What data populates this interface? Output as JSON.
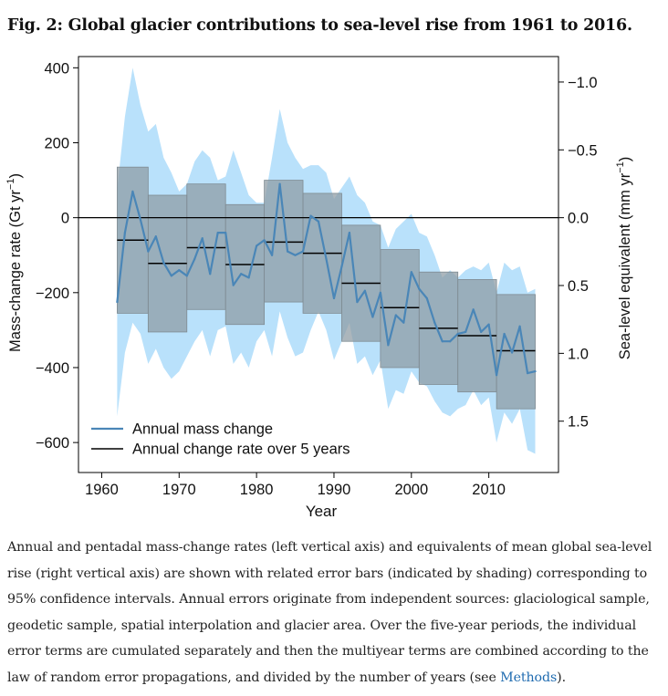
{
  "figure": {
    "title": "Fig. 2: Global glacier contributions to sea-level rise from 1961 to 2016."
  },
  "chart_data": {
    "type": "line",
    "xlabel": "Year",
    "ylabel": "Mass-change rate (Gt yr",
    "ylabel_sup": "−1",
    "ylabel_tail": ")",
    "y2label": "Sea-level equivalent (mm yr",
    "y2label_sup": "−1",
    "y2label_tail": ")",
    "xlim": [
      1957,
      2019
    ],
    "ylim": [
      -680,
      430
    ],
    "xticks": [
      1960,
      1970,
      1980,
      1990,
      2000,
      2010
    ],
    "yticks": [
      400,
      200,
      0,
      -200,
      -400,
      -600
    ],
    "y2ticks": [
      {
        "label": "−1.0",
        "gt": 362
      },
      {
        "label": "−0.5",
        "gt": 181
      },
      {
        "label": "0.0",
        "gt": 0
      },
      {
        "label": "0.5",
        "gt": -181
      },
      {
        "label": "1.0",
        "gt": -362
      },
      {
        "label": "1.5",
        "gt": -543
      }
    ],
    "grid": false,
    "legend_position": "bottom-left",
    "colors": {
      "annual_line": "#4a86b7",
      "annual_band": "#b9e1fb",
      "pentad_box": "#8c9aa2",
      "pentad_line": "#000000"
    },
    "series": [
      {
        "name": "Annual mass change",
        "x": [
          1962,
          1963,
          1964,
          1965,
          1966,
          1967,
          1968,
          1969,
          1970,
          1971,
          1972,
          1973,
          1974,
          1975,
          1976,
          1977,
          1978,
          1979,
          1980,
          1981,
          1982,
          1983,
          1984,
          1985,
          1986,
          1987,
          1988,
          1989,
          1990,
          1991,
          1992,
          1993,
          1994,
          1995,
          1996,
          1997,
          1998,
          1999,
          2000,
          2001,
          2002,
          2003,
          2004,
          2005,
          2006,
          2007,
          2008,
          2009,
          2010,
          2011,
          2012,
          2013,
          2014,
          2015,
          2016
        ],
        "values": [
          -225,
          -40,
          70,
          -5,
          -90,
          -50,
          -120,
          -155,
          -140,
          -155,
          -110,
          -55,
          -150,
          -40,
          -40,
          -180,
          -150,
          -160,
          -75,
          -60,
          -100,
          90,
          -90,
          -100,
          -90,
          5,
          -10,
          -110,
          -215,
          -130,
          -40,
          -225,
          -195,
          -265,
          -200,
          -340,
          -260,
          -280,
          -145,
          -190,
          -215,
          -280,
          -330,
          -330,
          -310,
          -305,
          -245,
          -305,
          -285,
          -420,
          -310,
          -360,
          -290,
          -415,
          -410
        ]
      },
      {
        "name": "Annual change rate over 5 years",
        "pentads": [
          {
            "x0": 1962,
            "x1": 1966,
            "value": -60,
            "lower": -255,
            "upper": 135
          },
          {
            "x0": 1966,
            "x1": 1971,
            "value": -122,
            "lower": -305,
            "upper": 60
          },
          {
            "x0": 1971,
            "x1": 1976,
            "value": -80,
            "lower": -245,
            "upper": 90
          },
          {
            "x0": 1976,
            "x1": 1981,
            "value": -125,
            "lower": -285,
            "upper": 35
          },
          {
            "x0": 1981,
            "x1": 1986,
            "value": -65,
            "lower": -225,
            "upper": 100
          },
          {
            "x0": 1986,
            "x1": 1991,
            "value": -95,
            "lower": -255,
            "upper": 65
          },
          {
            "x0": 1991,
            "x1": 1996,
            "value": -175,
            "lower": -330,
            "upper": -20
          },
          {
            "x0": 1996,
            "x1": 2001,
            "value": -240,
            "lower": -400,
            "upper": -85
          },
          {
            "x0": 2001,
            "x1": 2006,
            "value": -295,
            "lower": -445,
            "upper": -145
          },
          {
            "x0": 2006,
            "x1": 2011,
            "value": -315,
            "lower": -465,
            "upper": -165
          },
          {
            "x0": 2011,
            "x1": 2016,
            "value": -355,
            "lower": -510,
            "upper": -205
          }
        ]
      }
    ],
    "annual_error_band": {
      "x": [
        1962,
        1963,
        1964,
        1965,
        1966,
        1967,
        1968,
        1969,
        1970,
        1971,
        1972,
        1973,
        1974,
        1975,
        1976,
        1977,
        1978,
        1979,
        1980,
        1981,
        1982,
        1983,
        1984,
        1985,
        1986,
        1987,
        1988,
        1989,
        1990,
        1991,
        1992,
        1993,
        1994,
        1995,
        1996,
        1997,
        1998,
        1999,
        2000,
        2001,
        2002,
        2003,
        2004,
        2005,
        2006,
        2007,
        2008,
        2009,
        2010,
        2011,
        2012,
        2013,
        2014,
        2015,
        2016
      ],
      "upper": [
        75,
        270,
        400,
        300,
        230,
        250,
        160,
        120,
        70,
        90,
        150,
        180,
        160,
        100,
        110,
        180,
        120,
        60,
        40,
        40,
        160,
        290,
        200,
        160,
        130,
        140,
        140,
        120,
        50,
        80,
        110,
        60,
        40,
        -10,
        -20,
        -80,
        -30,
        -10,
        10,
        -40,
        -50,
        -100,
        -160,
        -140,
        -160,
        -140,
        -130,
        -140,
        -120,
        -200,
        -120,
        -140,
        -130,
        -200,
        -190
      ],
      "lower": [
        -530,
        -360,
        -280,
        -310,
        -390,
        -350,
        -400,
        -430,
        -410,
        -370,
        -330,
        -300,
        -370,
        -300,
        -290,
        -390,
        -360,
        -400,
        -330,
        -300,
        -370,
        -250,
        -320,
        -370,
        -360,
        -300,
        -250,
        -300,
        -380,
        -330,
        -280,
        -390,
        -370,
        -420,
        -380,
        -510,
        -460,
        -470,
        -410,
        -440,
        -450,
        -490,
        -520,
        -530,
        -510,
        -500,
        -460,
        -500,
        -480,
        -600,
        -520,
        -550,
        -510,
        -620,
        -630
      ]
    }
  },
  "caption": {
    "text": "Annual and pentadal mass-change rates (left vertical axis) and equivalents of mean global sea-level rise (right vertical axis) are shown with related error bars (indicated by shading) corresponding to 95% confidence intervals. Annual errors originate from independent sources: glaciological sample, geodetic sample, spatial interpolation and glacier area. Over the five-year periods, the individual error terms are cumulated separately and then the multiyear terms are combined according to the law of random error propagations, and divided by the number of years (see ",
    "link_text": "Methods",
    "tail": ")."
  }
}
